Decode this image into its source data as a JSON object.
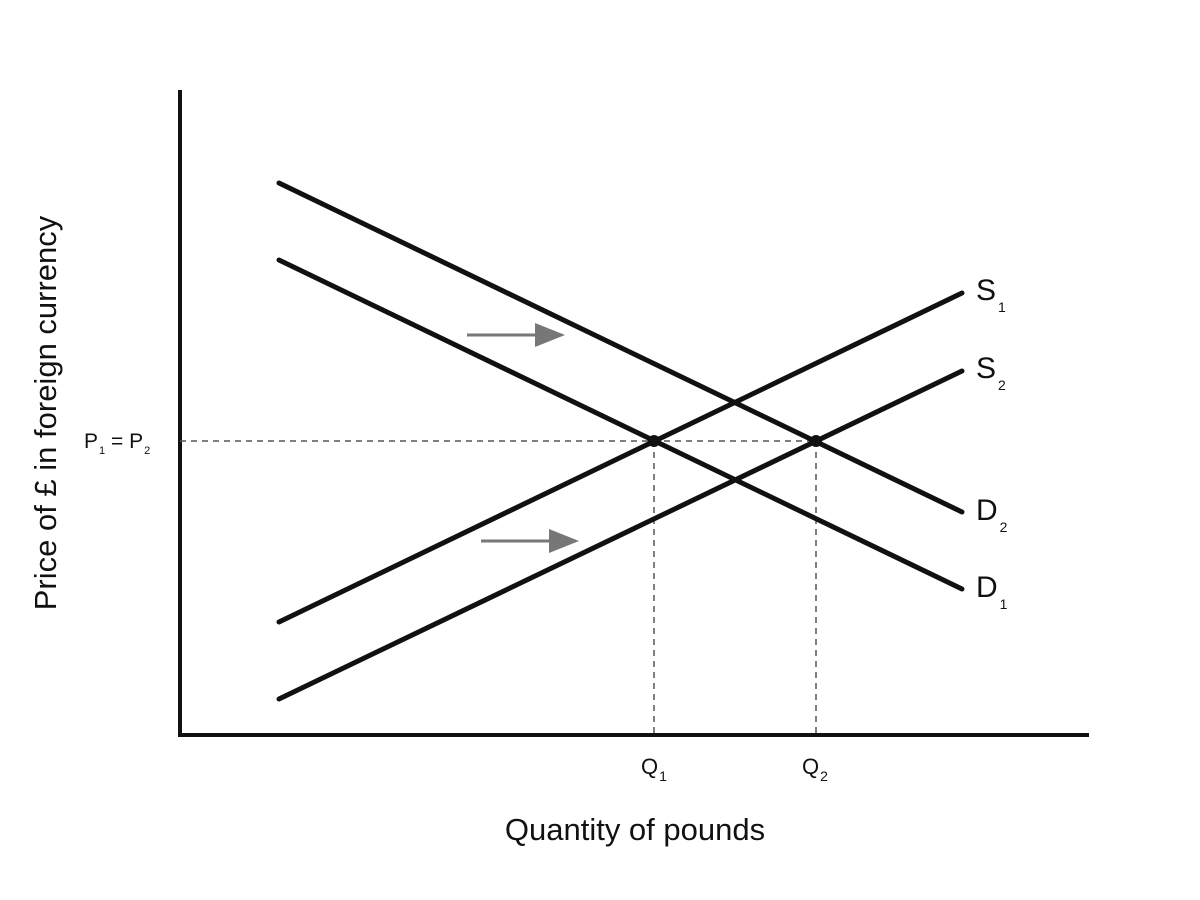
{
  "axes": {
    "y_label": "Price of £ in foreign currency",
    "x_label": "Quantity of pounds"
  },
  "curves": {
    "s1": {
      "text": "S",
      "sub": "1"
    },
    "s2": {
      "text": "S",
      "sub": "2"
    },
    "d2": {
      "text": "D",
      "sub": "2"
    },
    "d1": {
      "text": "D",
      "sub": "1"
    }
  },
  "quantities": {
    "q1": {
      "text": "Q",
      "sub": "1"
    },
    "q2": {
      "text": "Q",
      "sub": "2"
    }
  },
  "price": {
    "parts": [
      "P",
      "1",
      " = P",
      "2"
    ]
  }
}
